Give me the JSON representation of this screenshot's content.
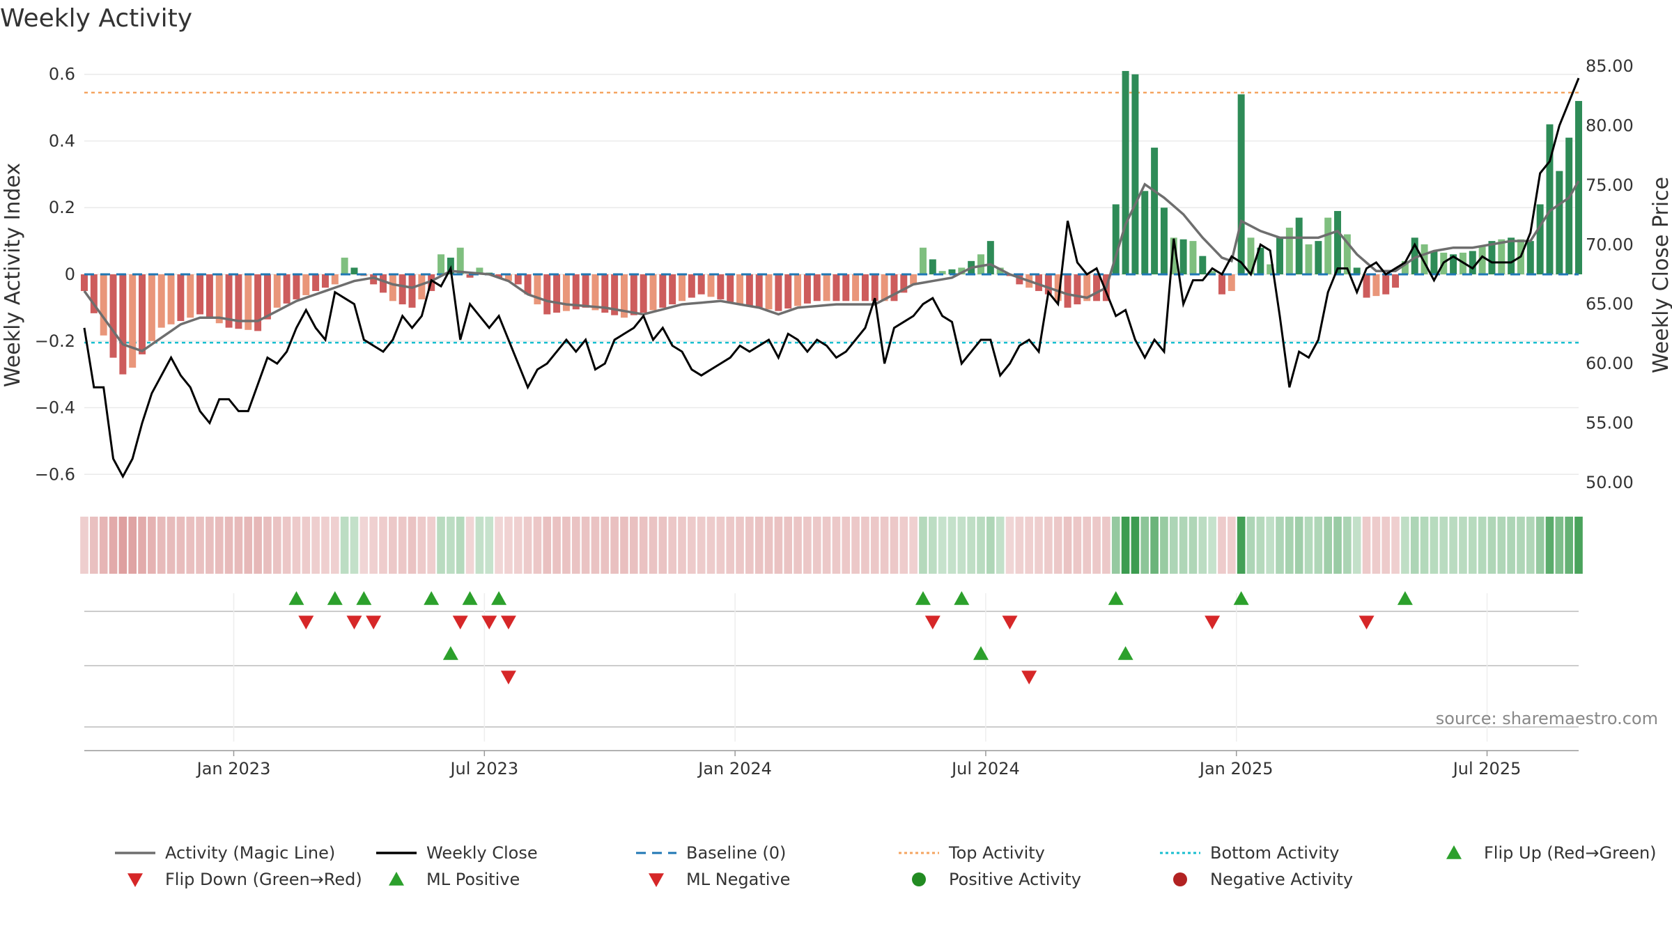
{
  "chart_data": {
    "type": "bar",
    "title": "Weekly Activity",
    "ylabel_left": "Weekly Activity Index",
    "ylabel_right": "Weekly Close Price",
    "left_ticks": [
      "0.6",
      "0.4",
      "0.2",
      "0",
      "−0.2",
      "−0.4",
      "−0.6"
    ],
    "left_tick_values": [
      0.6,
      0.4,
      0.2,
      0,
      -0.2,
      -0.4,
      -0.6
    ],
    "left_range": [
      -0.66,
      0.66
    ],
    "right_ticks": [
      "85.00",
      "80.00",
      "75.00",
      "70.00",
      "65.00",
      "60.00",
      "55.00",
      "50.00"
    ],
    "right_tick_values": [
      85,
      80,
      75,
      70,
      65,
      60,
      55,
      50
    ],
    "right_range": [
      49,
      86
    ],
    "x_ticks": [
      "Jan 2023",
      "Jul 2023",
      "Jan 2024",
      "Jul 2024",
      "Jan 2025",
      "Jul 2025"
    ],
    "x_tick_weeks": [
      15.5,
      41.5,
      67.5,
      93.5,
      119.5,
      145.5
    ],
    "top_activity": 0.545,
    "bottom_activity": -0.205,
    "activity_keyframes": [
      [
        0,
        -0.05
      ],
      [
        3,
        -0.25
      ],
      [
        4,
        -0.3
      ],
      [
        5,
        -0.28
      ],
      [
        8,
        -0.16
      ],
      [
        12,
        -0.12
      ],
      [
        15,
        -0.16
      ],
      [
        18,
        -0.17
      ],
      [
        20,
        -0.1
      ],
      [
        24,
        -0.05
      ],
      [
        26,
        -0.03
      ],
      [
        27,
        0.05
      ],
      [
        28,
        0.02
      ],
      [
        30,
        -0.03
      ],
      [
        32,
        -0.08
      ],
      [
        34,
        -0.1
      ],
      [
        36,
        -0.05
      ],
      [
        37,
        0.06
      ],
      [
        38,
        0.05
      ],
      [
        39,
        0.08
      ],
      [
        40,
        -0.01
      ],
      [
        41,
        0.02
      ],
      [
        43,
        -0.01
      ],
      [
        45,
        -0.03
      ],
      [
        48,
        -0.12
      ],
      [
        52,
        -0.1
      ],
      [
        56,
        -0.13
      ],
      [
        60,
        -0.1
      ],
      [
        64,
        -0.06
      ],
      [
        68,
        -0.09
      ],
      [
        72,
        -0.11
      ],
      [
        76,
        -0.08
      ],
      [
        80,
        -0.08
      ],
      [
        84,
        -0.08
      ],
      [
        86,
        -0.03
      ],
      [
        87,
        0.08
      ],
      [
        89,
        0.01
      ],
      [
        91,
        0.02
      ],
      [
        93,
        0.06
      ],
      [
        94,
        0.1
      ],
      [
        95,
        0.02
      ],
      [
        97,
        -0.03
      ],
      [
        100,
        -0.06
      ],
      [
        102,
        -0.1
      ],
      [
        104,
        -0.08
      ],
      [
        106,
        -0.08
      ],
      [
        107,
        0.21
      ],
      [
        108,
        0.61
      ],
      [
        109,
        0.6
      ],
      [
        110,
        0.25
      ],
      [
        111,
        0.38
      ],
      [
        112,
        0.2
      ],
      [
        113,
        0.11
      ],
      [
        115,
        0.1
      ],
      [
        117,
        0.01
      ],
      [
        118,
        -0.06
      ],
      [
        119,
        -0.05
      ],
      [
        120,
        0.54
      ],
      [
        121,
        0.11
      ],
      [
        122,
        0.08
      ],
      [
        123,
        0.03
      ],
      [
        124,
        0.11
      ],
      [
        126,
        0.17
      ],
      [
        127,
        0.09
      ],
      [
        128,
        0.1
      ],
      [
        129,
        0.17
      ],
      [
        130,
        0.19
      ],
      [
        131,
        0.12
      ],
      [
        132,
        0.02
      ],
      [
        133,
        -0.07
      ],
      [
        135,
        -0.06
      ],
      [
        136,
        -0.04
      ],
      [
        137,
        0.04
      ],
      [
        138,
        0.11
      ],
      [
        140,
        0.07
      ],
      [
        142,
        0.06
      ],
      [
        144,
        0.07
      ],
      [
        146,
        0.1
      ],
      [
        148,
        0.11
      ],
      [
        150,
        0.1
      ],
      [
        151,
        0.21
      ],
      [
        152,
        0.45
      ],
      [
        153,
        0.31
      ],
      [
        154,
        0.41
      ],
      [
        155,
        0.52
      ]
    ],
    "magic_line_keyframes": [
      [
        0,
        -0.05
      ],
      [
        2,
        -0.13
      ],
      [
        4,
        -0.21
      ],
      [
        6,
        -0.23
      ],
      [
        8,
        -0.19
      ],
      [
        10,
        -0.15
      ],
      [
        12,
        -0.13
      ],
      [
        14,
        -0.13
      ],
      [
        16,
        -0.14
      ],
      [
        18,
        -0.14
      ],
      [
        20,
        -0.11
      ],
      [
        22,
        -0.08
      ],
      [
        24,
        -0.06
      ],
      [
        26,
        -0.04
      ],
      [
        28,
        -0.02
      ],
      [
        30,
        -0.01
      ],
      [
        32,
        -0.03
      ],
      [
        34,
        -0.04
      ],
      [
        36,
        -0.02
      ],
      [
        38,
        0.01
      ],
      [
        40,
        0.005
      ],
      [
        42,
        0.0
      ],
      [
        44,
        -0.02
      ],
      [
        46,
        -0.06
      ],
      [
        48,
        -0.08
      ],
      [
        50,
        -0.09
      ],
      [
        54,
        -0.1
      ],
      [
        58,
        -0.12
      ],
      [
        62,
        -0.09
      ],
      [
        66,
        -0.08
      ],
      [
        70,
        -0.1
      ],
      [
        72,
        -0.12
      ],
      [
        74,
        -0.1
      ],
      [
        78,
        -0.09
      ],
      [
        82,
        -0.09
      ],
      [
        86,
        -0.03
      ],
      [
        88,
        -0.02
      ],
      [
        90,
        -0.01
      ],
      [
        92,
        0.02
      ],
      [
        94,
        0.03
      ],
      [
        96,
        0.0
      ],
      [
        98,
        -0.02
      ],
      [
        100,
        -0.04
      ],
      [
        102,
        -0.06
      ],
      [
        104,
        -0.07
      ],
      [
        106,
        -0.04
      ],
      [
        108,
        0.15
      ],
      [
        110,
        0.27
      ],
      [
        112,
        0.23
      ],
      [
        114,
        0.18
      ],
      [
        116,
        0.11
      ],
      [
        118,
        0.05
      ],
      [
        119,
        0.04
      ],
      [
        120,
        0.16
      ],
      [
        122,
        0.13
      ],
      [
        124,
        0.11
      ],
      [
        126,
        0.11
      ],
      [
        128,
        0.11
      ],
      [
        130,
        0.13
      ],
      [
        132,
        0.06
      ],
      [
        134,
        0.01
      ],
      [
        136,
        0.01
      ],
      [
        138,
        0.05
      ],
      [
        140,
        0.07
      ],
      [
        142,
        0.08
      ],
      [
        144,
        0.08
      ],
      [
        146,
        0.09
      ],
      [
        148,
        0.1
      ],
      [
        150,
        0.1
      ],
      [
        152,
        0.19
      ],
      [
        154,
        0.23
      ],
      [
        155,
        0.28
      ]
    ],
    "close_keyframes": [
      [
        0,
        63
      ],
      [
        1,
        58
      ],
      [
        2,
        58
      ],
      [
        3,
        52
      ],
      [
        4,
        50.5
      ],
      [
        5,
        52
      ],
      [
        6,
        55
      ],
      [
        7,
        57.5
      ],
      [
        8,
        59
      ],
      [
        9,
        60.5
      ],
      [
        10,
        59
      ],
      [
        11,
        58
      ],
      [
        12,
        56
      ],
      [
        13,
        55
      ],
      [
        14,
        57
      ],
      [
        15,
        57
      ],
      [
        16,
        56
      ],
      [
        17,
        56
      ],
      [
        19,
        60.5
      ],
      [
        20,
        60
      ],
      [
        21,
        61
      ],
      [
        22,
        63
      ],
      [
        23,
        64.5
      ],
      [
        24,
        63
      ],
      [
        25,
        62
      ],
      [
        26,
        66
      ],
      [
        27,
        65.5
      ],
      [
        28,
        65
      ],
      [
        29,
        62
      ],
      [
        30,
        61.5
      ],
      [
        31,
        61
      ],
      [
        32,
        62
      ],
      [
        33,
        64
      ],
      [
        34,
        63
      ],
      [
        35,
        64
      ],
      [
        36,
        67
      ],
      [
        37,
        66.5
      ],
      [
        38,
        68
      ],
      [
        39,
        62
      ],
      [
        40,
        65
      ],
      [
        41,
        64
      ],
      [
        42,
        63
      ],
      [
        43,
        64
      ],
      [
        44,
        62
      ],
      [
        45,
        60
      ],
      [
        46,
        58
      ],
      [
        47,
        59.5
      ],
      [
        48,
        60
      ],
      [
        49,
        61
      ],
      [
        50,
        62
      ],
      [
        51,
        61
      ],
      [
        52,
        62
      ],
      [
        53,
        59.5
      ],
      [
        54,
        60
      ],
      [
        55,
        62
      ],
      [
        56,
        62.5
      ],
      [
        57,
        63
      ],
      [
        58,
        64
      ],
      [
        59,
        62
      ],
      [
        60,
        63
      ],
      [
        61,
        61.5
      ],
      [
        62,
        61
      ],
      [
        63,
        59.5
      ],
      [
        64,
        59
      ],
      [
        65,
        59.5
      ],
      [
        66,
        60
      ],
      [
        67,
        60.5
      ],
      [
        68,
        61.5
      ],
      [
        69,
        61
      ],
      [
        70,
        61.5
      ],
      [
        71,
        62
      ],
      [
        72,
        60.5
      ],
      [
        73,
        62.5
      ],
      [
        74,
        62
      ],
      [
        75,
        61
      ],
      [
        76,
        62
      ],
      [
        77,
        61.5
      ],
      [
        78,
        60.5
      ],
      [
        79,
        61
      ],
      [
        80,
        62
      ],
      [
        81,
        63
      ],
      [
        82,
        65.5
      ],
      [
        83,
        60
      ],
      [
        84,
        63
      ],
      [
        85,
        63.5
      ],
      [
        86,
        64
      ],
      [
        87,
        65
      ],
      [
        88,
        65.5
      ],
      [
        89,
        64
      ],
      [
        90,
        63.5
      ],
      [
        91,
        60
      ],
      [
        92,
        61
      ],
      [
        93,
        62
      ],
      [
        94,
        62
      ],
      [
        95,
        59
      ],
      [
        96,
        60
      ],
      [
        97,
        61.5
      ],
      [
        98,
        62
      ],
      [
        99,
        61
      ],
      [
        100,
        66
      ],
      [
        101,
        65
      ],
      [
        102,
        72
      ],
      [
        103,
        68.5
      ],
      [
        104,
        67.5
      ],
      [
        105,
        68
      ],
      [
        106,
        66
      ],
      [
        107,
        64
      ],
      [
        108,
        64.5
      ],
      [
        109,
        62
      ],
      [
        110,
        60.5
      ],
      [
        111,
        62
      ],
      [
        112,
        61
      ],
      [
        113,
        70.5
      ],
      [
        114,
        65
      ],
      [
        115,
        67
      ],
      [
        116,
        67
      ],
      [
        117,
        68
      ],
      [
        118,
        67.5
      ],
      [
        119,
        69
      ],
      [
        120,
        68.5
      ],
      [
        121,
        67.5
      ],
      [
        122,
        70
      ],
      [
        123,
        69.5
      ],
      [
        124,
        64
      ],
      [
        125,
        58
      ],
      [
        126,
        61
      ],
      [
        127,
        60.5
      ],
      [
        128,
        62
      ],
      [
        129,
        66
      ],
      [
        130,
        68
      ],
      [
        131,
        68
      ],
      [
        132,
        66
      ],
      [
        133,
        68
      ],
      [
        134,
        68.5
      ],
      [
        135,
        67.5
      ],
      [
        136,
        68
      ],
      [
        137,
        68.5
      ],
      [
        138,
        70
      ],
      [
        139,
        68.5
      ],
      [
        140,
        67
      ],
      [
        141,
        68.5
      ],
      [
        142,
        69
      ],
      [
        143,
        68.5
      ],
      [
        144,
        68
      ],
      [
        145,
        69
      ],
      [
        146,
        68.5
      ],
      [
        147,
        68.5
      ],
      [
        148,
        68.5
      ],
      [
        149,
        69
      ],
      [
        150,
        71
      ],
      [
        151,
        76
      ],
      [
        152,
        77
      ],
      [
        153,
        80
      ],
      [
        154,
        82
      ],
      [
        155,
        84
      ]
    ],
    "flip_up_weeks": [
      22,
      26,
      29,
      36,
      40,
      43,
      87,
      91,
      107,
      120,
      137
    ],
    "flip_down_weeks": [
      23,
      28,
      30,
      39,
      42,
      44,
      88,
      96,
      117,
      133
    ],
    "ml_positive_weeks": [
      38,
      93,
      108
    ],
    "ml_negative_weeks": [
      44,
      98
    ],
    "legend": [
      "Activity (Magic Line)",
      "Weekly Close",
      "Baseline (0)",
      "Top Activity",
      "Bottom Activity",
      "Flip Up (Red→Green)",
      "Flip Down (Green→Red)",
      "ML Positive",
      "ML Negative",
      "Positive Activity",
      "Negative Activity"
    ],
    "source": "source: sharemaestro.com"
  },
  "colors": {
    "pos_dark": "#2e8b57",
    "pos_light": "#7fbf7f",
    "neg_dark": "#cd5c5c",
    "neg_light": "#e9967a",
    "magic_line": "#6e6e6e",
    "close": "#000000",
    "baseline": "#1f77b4",
    "top": "#f4a460",
    "bottom": "#17becf",
    "flip_up": "#2ca02c",
    "flip_down": "#d62728",
    "pos_dot": "#228b22",
    "neg_dot": "#b22222"
  }
}
